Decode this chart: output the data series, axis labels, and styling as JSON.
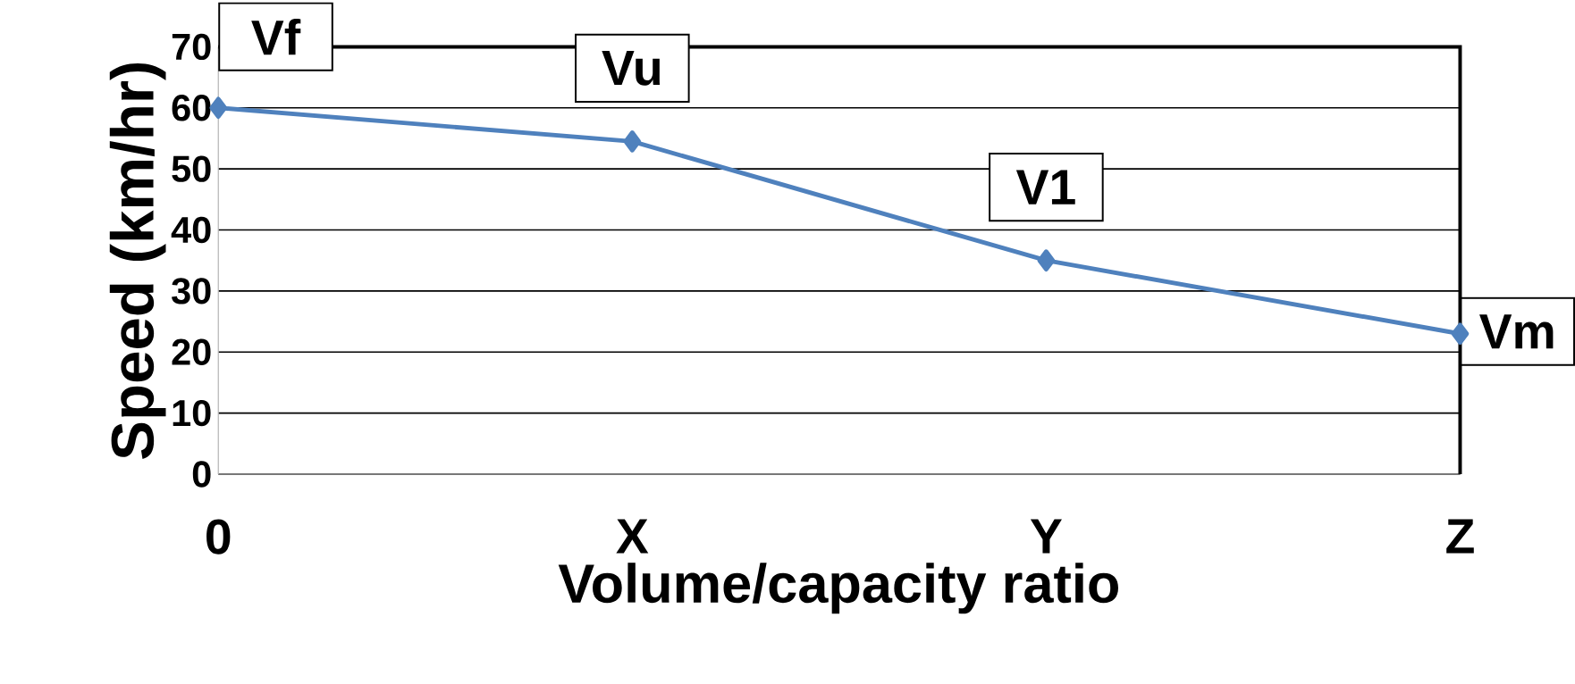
{
  "chart_data": {
    "type": "line",
    "xlabel": "Volume/capacity ratio",
    "ylabel": "Speed (km/hr)",
    "categories": [
      "0",
      "X",
      "Y",
      "Z"
    ],
    "values": [
      60,
      54.5,
      35,
      23
    ],
    "color": "#4f81bd",
    "marker": "diamond",
    "grid": "y",
    "ylim": [
      0,
      70
    ],
    "yticks": [
      0,
      10,
      20,
      30,
      40,
      50,
      60,
      70
    ],
    "annotations": [
      {
        "text": "Vf",
        "x": "0",
        "y": 60
      },
      {
        "text": "Vu",
        "x": "X",
        "y": 54.5
      },
      {
        "text": "V1",
        "x": "Y",
        "y": 35
      },
      {
        "text": "Vm",
        "x": "Z",
        "y": 23
      }
    ]
  }
}
